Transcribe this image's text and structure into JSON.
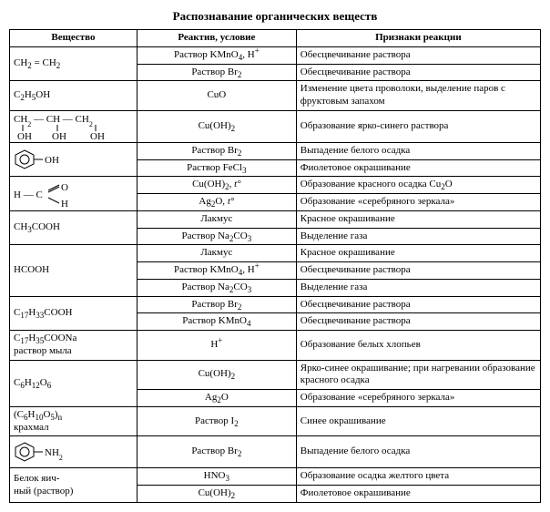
{
  "title": "Распознавание органических веществ",
  "columns": [
    "Вещество",
    "Реактив, условие",
    "Признаки реакции"
  ],
  "col_widths": [
    "24%",
    "30%",
    "46%"
  ],
  "rows": [
    {
      "substance_html": "CH<sub>2</sub> = CH<sub>2</sub>",
      "rowspan": 2,
      "reagent_html": "Раствор KMnO<sub>4</sub>, H<sup>+</sup>",
      "result": "Обесцвечивание раствора"
    },
    {
      "reagent_html": "Раствор Br<sub>2</sub>",
      "result": "Обесцвечивание раствора"
    },
    {
      "substance_html": "C<sub>2</sub>H<sub>5</sub>OH",
      "rowspan": 1,
      "reagent_html": "CuO",
      "result": "Изменение цвета проволоки, выделение паров с фруктовым запахом"
    },
    {
      "substance_svg": "glycerol",
      "rowspan": 1,
      "reagent_html": "Cu(OH)<sub>2</sub>",
      "result": "Образование ярко-синего раствора"
    },
    {
      "substance_svg": "phenol",
      "rowspan": 2,
      "reagent_html": "Раствор Br<sub>2</sub>",
      "result": "Выпадение белого осадка"
    },
    {
      "reagent_html": "Раствор FeCl<sub>3</sub>",
      "result": "Фиолетовое окрашивание"
    },
    {
      "substance_svg": "formaldehyde",
      "rowspan": 2,
      "reagent_html": "Cu(OH)<sub>2</sub>, <i>t°</i>",
      "result": "Образование красного осадка Cu<sub>2</sub>O"
    },
    {
      "reagent_html": "Ag<sub>2</sub>O, <i>t°</i>",
      "result": "Образование «серебряного зеркала»"
    },
    {
      "substance_html": "CH<sub>3</sub>COOH",
      "rowspan": 2,
      "reagent_html": "Лакмус",
      "result": "Красное окрашивание"
    },
    {
      "reagent_html": "Раствор Na<sub>2</sub>CO<sub>3</sub>",
      "result": "Выделение газа"
    },
    {
      "substance_html": "HCOOH",
      "rowspan": 3,
      "reagent_html": "Лакмус",
      "result": "Красное окрашивание"
    },
    {
      "reagent_html": "Раствор KMnO<sub>4</sub>, H<sup>+</sup>",
      "result": "Обесцвечивание раствора"
    },
    {
      "reagent_html": "Раствор Na<sub>2</sub>CO<sub>3</sub>",
      "result": "Выделение газа"
    },
    {
      "substance_html": "C<sub>17</sub>H<sub>33</sub>COOH",
      "rowspan": 2,
      "reagent_html": "Раствор Br<sub>2</sub>",
      "result": "Обесцвечивание раствора"
    },
    {
      "reagent_html": "Раствор KMnO<sub>4</sub>",
      "result": "Обесцвечивание раствора"
    },
    {
      "substance_html": "C<sub>17</sub>H<sub>35</sub>COONa<br>раствор мыла",
      "rowspan": 1,
      "reagent_html": "H<sup>+</sup>",
      "result": "Образование белых хлопьев"
    },
    {
      "substance_html": "C<sub>6</sub>H<sub>12</sub>O<sub>6</sub>",
      "rowspan": 2,
      "reagent_html": "Cu(OH)<sub>2</sub>",
      "result": "Ярко-синее окрашивание; при нагревании образование красного осадка"
    },
    {
      "reagent_html": "Ag<sub>2</sub>O",
      "result": "Образование «серебряного зеркала»"
    },
    {
      "substance_html": "(C<sub>6</sub>H<sub>10</sub>O<sub>5</sub>)<sub>n</sub><br>крахмал",
      "rowspan": 1,
      "reagent_html": "Раствор I<sub>2</sub>",
      "result": "Синее окрашивание"
    },
    {
      "substance_svg": "aniline",
      "rowspan": 1,
      "reagent_html": "Раствор Br<sub>2</sub>",
      "result": "Выпадение белого осадка"
    },
    {
      "substance_html": "Белок яич-<br>ный (раствор)",
      "rowspan": 2,
      "reagent_html": "HNO<sub>3</sub>",
      "result": "Образование осадка желтого цвета"
    },
    {
      "reagent_html": "Cu(OH)<sub>2</sub>",
      "result": "Фиолетовое окрашивание"
    }
  ],
  "svg_formulas": {
    "glycerol": "<svg class='formula-svg' width='120' height='30' viewBox='0 0 120 30'><text x='0' y='10' font-family=\"Times New Roman\" font-size='11'>CH<tspan baseline-shift='sub' font-size='8'>2</tspan> — CH — CH<tspan baseline-shift='sub' font-size='8'>2</tspan></text><line x1='10' y1='13' x2='10' y2='20' stroke='black'/><line x1='48' y1='13' x2='48' y2='20' stroke='black'/><line x1='90' y1='13' x2='90' y2='20' stroke='black'/><text x='4' y='29' font-family=\"Times New Roman\" font-size='11'>OH</text><text x='42' y='29' font-family=\"Times New Roman\" font-size='11'>OH</text><text x='84' y='29' font-family=\"Times New Roman\" font-size='11'>OH</text></svg>",
    "phenol": "<svg class='formula-svg' width='70' height='30' viewBox='0 0 70 30'><polygon points='12,5 22,10 22,20 12,25 2,20 2,10' fill='none' stroke='black'/><circle cx='12' cy='15' r='5' fill='none' stroke='black'/><line x1='22' y1='15' x2='32' y2='15' stroke='black'/><text x='34' y='19' font-family=\"Times New Roman\" font-size='11'>OH</text></svg>",
    "formaldehyde": "<svg class='formula-svg' width='70' height='32' viewBox='0 0 70 32'><text x='0' y='20' font-family=\"Times New Roman\" font-size='11'>H — C</text><line x1='38' y1='12' x2='50' y2='6' stroke='black'/><line x1='38' y1='14' x2='50' y2='8' stroke='black'/><text x='52' y='12' font-family=\"Times New Roman\" font-size='11'>O</text><line x1='38' y1='20' x2='50' y2='26' stroke='black'/><text x='52' y='30' font-family=\"Times New Roman\" font-size='11'>H</text></svg>",
    "aniline": "<svg class='formula-svg' width='70' height='30' viewBox='0 0 70 30'><polygon points='12,5 22,10 22,20 12,25 2,20 2,10' fill='none' stroke='black'/><circle cx='12' cy='15' r='5' fill='none' stroke='black'/><line x1='22' y1='15' x2='32' y2='15' stroke='black'/><text x='34' y='19' font-family=\"Times New Roman\" font-size='11'>NH<tspan baseline-shift='sub' font-size='8'>2</tspan></text></svg>"
  }
}
